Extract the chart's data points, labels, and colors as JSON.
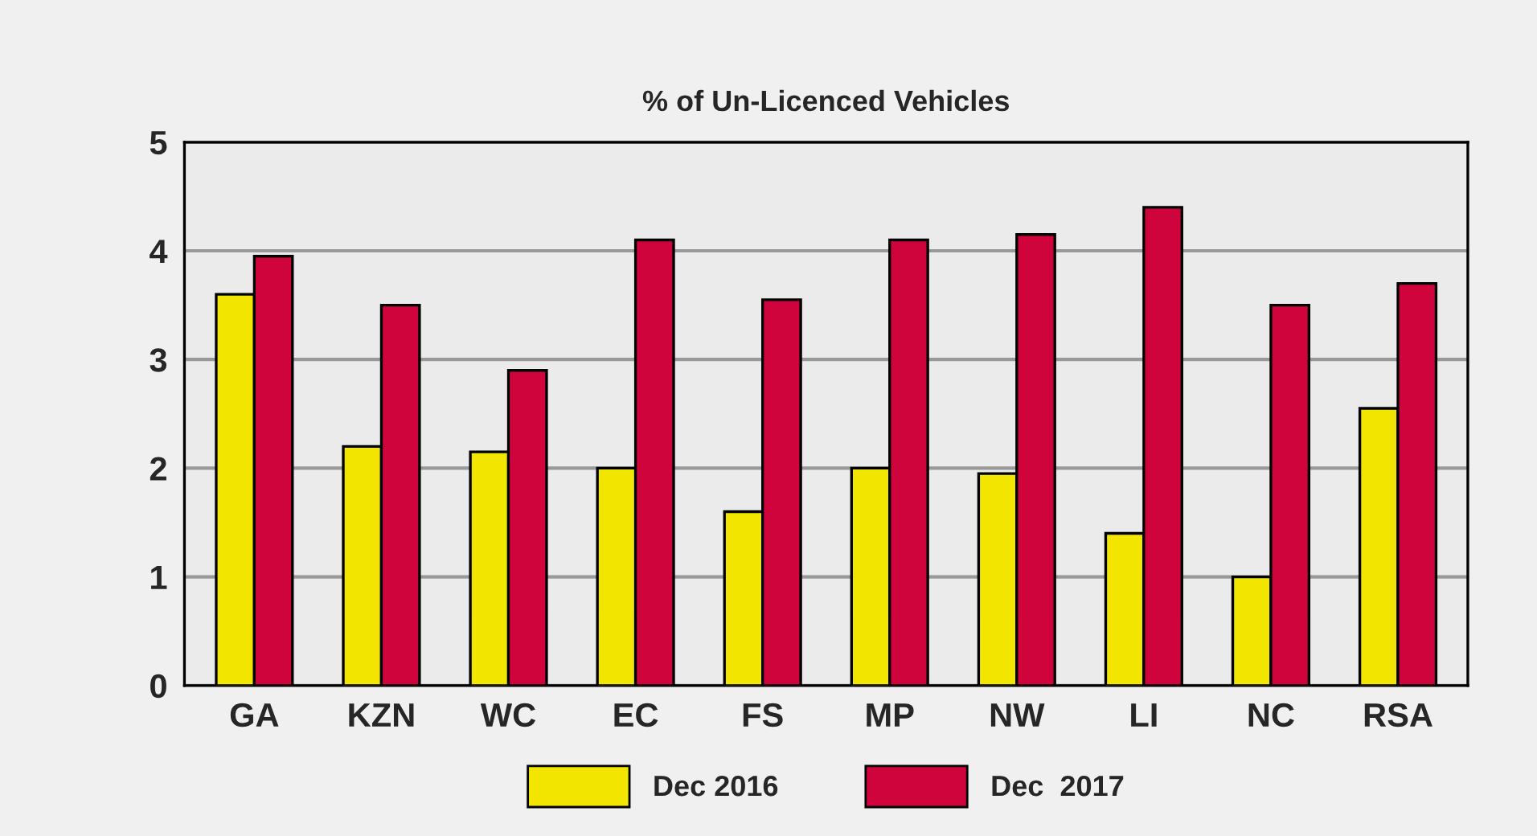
{
  "chart_data": {
    "type": "bar",
    "title": "% of Un-Licenced Vehicles",
    "categories": [
      "GA",
      "KZN",
      "WC",
      "EC",
      "FS",
      "MP",
      "NW",
      "LI",
      "NC",
      "RSA"
    ],
    "series": [
      {
        "name": "Dec 2016",
        "color": "#f2e600",
        "values": [
          3.6,
          2.2,
          2.15,
          2.0,
          1.6,
          2.0,
          1.95,
          1.4,
          1.0,
          2.55
        ]
      },
      {
        "name": "Dec  2017",
        "color": "#d0043c",
        "values": [
          3.95,
          3.5,
          2.9,
          4.1,
          3.55,
          4.1,
          4.15,
          4.4,
          3.5,
          3.7
        ]
      }
    ],
    "ylim": [
      0,
      5
    ],
    "yticks": [
      0,
      1,
      2,
      3,
      4,
      5
    ],
    "grid": "y",
    "legend": "bottom"
  }
}
